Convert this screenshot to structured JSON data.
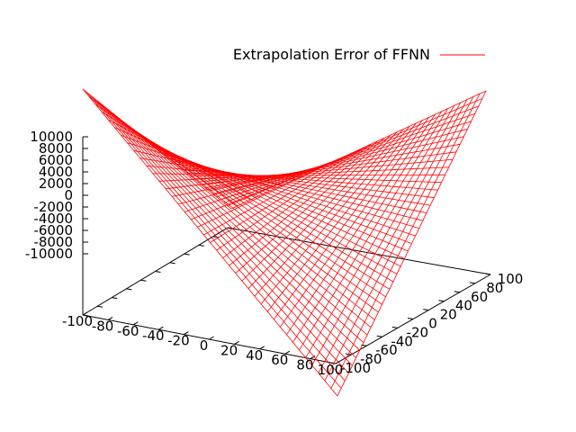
{
  "chart_data": {
    "type": "surface-3d",
    "title": "",
    "legend": {
      "position": "top-right",
      "entries": [
        {
          "name": "Extrapolation Error of FFNN",
          "color": "#ff0000"
        }
      ]
    },
    "x": {
      "label": "",
      "range": [
        -100,
        100
      ],
      "ticks": [
        "-100",
        "-80",
        "-60",
        "-40",
        "-20",
        "0",
        "20",
        "40",
        "60",
        "80",
        "100"
      ]
    },
    "y": {
      "label": "",
      "range": [
        -100,
        100
      ],
      "ticks": [
        "-100",
        "-80",
        "-60",
        "-40",
        "-20",
        "0",
        "20",
        "40",
        "60",
        "80",
        "100"
      ]
    },
    "z": {
      "label": "",
      "range": [
        -10000,
        10000
      ],
      "ticks": [
        "10000",
        "8000",
        "6000",
        "4000",
        "2000",
        "0",
        "-2000",
        "-4000",
        "-6000",
        "-8000",
        "-10000"
      ]
    },
    "series": [
      {
        "name": "Extrapolation Error of FFNN",
        "color": "#ff0000",
        "style": "wireframe",
        "grid_points": [
          {
            "x": -100,
            "y": -100,
            "z": 10000
          },
          {
            "x": 100,
            "y": -100,
            "z": -10000
          },
          {
            "x": -100,
            "y": 100,
            "z": -10000
          },
          {
            "x": 100,
            "y": 100,
            "z": 10000
          }
        ],
        "formula": "z = x * y",
        "samples_per_axis": 41
      }
    ],
    "grid": false
  }
}
